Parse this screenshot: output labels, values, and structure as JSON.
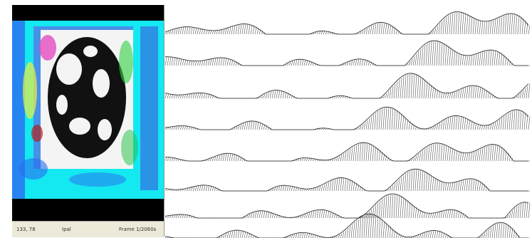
{
  "status_bar": {
    "coordinates": "133, 78",
    "mode": "Ipal",
    "frame": "Frame 1/2060s"
  }
}
